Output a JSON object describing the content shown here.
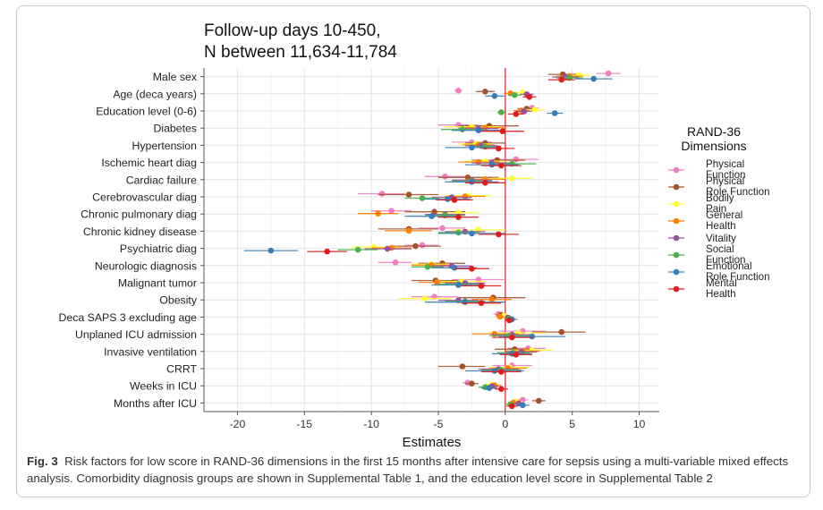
{
  "chart_data": {
    "type": "scatter",
    "title": "Follow-up days 10-450,\nN between 11,634-11,784",
    "xlabel": "Estimates",
    "ylabel": "",
    "xlim": [
      -22.5,
      11.5
    ],
    "xticks": [
      -20,
      -15,
      -10,
      -5,
      0,
      5,
      10
    ],
    "reference_line_x": 0,
    "grid": true,
    "legend_title": [
      "RAND-36",
      "Dimensions"
    ],
    "legend_position": "right",
    "categories": [
      "Male sex",
      "Age (deca years)",
      "Education level (0-6)",
      "Diabetes",
      "Hypertension",
      "Ischemic heart diag",
      "Cardiac failure",
      "Cerebrovascular diag",
      "Chronic pulmonary diag",
      "Chronic kidney disease",
      "Psychiatric diag",
      "Neurologic diagnosis",
      "Malignant tumor",
      "Obesity",
      "Deca SAPS 3 excluding age",
      "Unplaned ICU admission",
      "Invasive ventilation",
      "CRRT",
      "Weeks in ICU",
      "Months after ICU"
    ],
    "series": [
      {
        "name": "Physical Function",
        "label_lines": [
          "Physical",
          "Function"
        ],
        "color": "#f07ec0",
        "values": [
          7.7,
          -3.5,
          2.0,
          -3.5,
          -2.5,
          0.8,
          -4.5,
          -9.2,
          -8.5,
          -4.7,
          -6.2,
          -8.2,
          -2.0,
          -5.3,
          -0.5,
          1.3,
          1.7,
          0.5,
          -2.8,
          1.3
        ],
        "ci_low": [
          6.8,
          -3.8,
          1.5,
          -5.0,
          -4.0,
          -1.0,
          -6.0,
          -11.0,
          -10.0,
          -6.5,
          -7.5,
          -9.5,
          -4.0,
          -7.0,
          -0.9,
          -0.5,
          0.2,
          -1.0,
          -3.2,
          0.9
        ],
        "ci_high": [
          8.6,
          -3.2,
          2.5,
          -2.0,
          -1.0,
          2.5,
          -3.0,
          -7.5,
          -7.0,
          -3.0,
          -5.0,
          -7.0,
          0.0,
          -3.5,
          -0.1,
          3.0,
          3.0,
          2.0,
          -2.4,
          1.7
        ]
      },
      {
        "name": "Physical Role Function",
        "label_lines": [
          "Physical",
          "Role Function"
        ],
        "color": "#a4522c",
        "values": [
          4.3,
          -1.5,
          1.6,
          -1.2,
          -1.5,
          -0.6,
          -2.8,
          -7.2,
          -5.3,
          -7.2,
          -6.7,
          -4.7,
          -5.2,
          -0.9,
          -0.3,
          4.2,
          0.7,
          -3.2,
          -2.5,
          2.5
        ],
        "ci_low": [
          3.2,
          -2.2,
          0.9,
          -3.5,
          -3.0,
          -2.5,
          -5.0,
          -9.5,
          -7.5,
          -9.5,
          -8.5,
          -6.5,
          -7.0,
          -3.5,
          -0.7,
          2.0,
          -0.8,
          -5.0,
          -3.0,
          2.0
        ],
        "ci_high": [
          5.4,
          -0.8,
          2.3,
          1.0,
          0.0,
          1.5,
          -0.5,
          -5.0,
          -3.0,
          -5.0,
          -4.8,
          -3.0,
          -3.5,
          1.5,
          0.1,
          6.0,
          2.0,
          -1.5,
          -2.0,
          3.0
        ]
      },
      {
        "name": "Bodily Pain",
        "label_lines": [
          "Bodily",
          "Pain"
        ],
        "color": "#ffff33",
        "values": [
          5.5,
          1.3,
          2.2,
          -2.5,
          -2.2,
          -1.5,
          0.5,
          -2.8,
          -3.5,
          -2.0,
          -9.8,
          -5.5,
          -3.2,
          -6.0,
          -0.1,
          1.0,
          2.0,
          0.3,
          -1.0,
          0.8
        ],
        "ci_low": [
          4.5,
          0.8,
          1.5,
          -4.5,
          -3.5,
          -3.0,
          -1.0,
          -4.5,
          -5.0,
          -4.0,
          -11.5,
          -7.0,
          -5.0,
          -8.0,
          -0.5,
          -1.0,
          0.5,
          -1.2,
          -1.5,
          0.3
        ],
        "ci_high": [
          6.5,
          1.8,
          2.9,
          -0.5,
          -1.0,
          0.0,
          2.0,
          -1.0,
          -2.0,
          0.0,
          -8.0,
          -4.0,
          -1.5,
          -4.0,
          0.3,
          3.0,
          3.5,
          1.8,
          -0.5,
          1.3
        ]
      },
      {
        "name": "General Health",
        "label_lines": [
          "General",
          "Health"
        ],
        "color": "#ff7f00",
        "values": [
          4.8,
          0.4,
          1.2,
          -1.5,
          -2.0,
          -2.0,
          -1.5,
          -3.0,
          -9.5,
          -7.2,
          -8.5,
          -5.5,
          -5.1,
          -1.0,
          -0.4,
          -0.8,
          1.3,
          0.2,
          -0.8,
          0.6
        ],
        "ci_low": [
          3.8,
          -0.1,
          0.6,
          -3.0,
          -3.2,
          -3.5,
          -3.0,
          -4.5,
          -11.0,
          -9.0,
          -10.0,
          -7.0,
          -6.5,
          -2.5,
          -0.7,
          -2.5,
          0.0,
          -1.2,
          -1.3,
          0.2
        ],
        "ci_high": [
          5.8,
          0.9,
          1.8,
          0.0,
          -0.8,
          -0.5,
          0.0,
          -1.5,
          -8.0,
          -5.5,
          -7.0,
          -4.0,
          -3.7,
          0.5,
          -0.1,
          1.0,
          2.6,
          1.6,
          -0.3,
          1.0
        ]
      },
      {
        "name": "Vitality",
        "label_lines": [
          "Vitality"
        ],
        "color": "#984ea3",
        "values": [
          4.5,
          1.6,
          1.4,
          -2.0,
          -1.8,
          -1.0,
          -2.5,
          -4.0,
          -4.5,
          -3.0,
          -8.8,
          -4.0,
          -3.0,
          -3.5,
          0.2,
          0.5,
          1.2,
          -0.5,
          -1.0,
          1.0
        ],
        "ci_low": [
          3.5,
          1.1,
          0.8,
          -3.5,
          -3.0,
          -2.5,
          -4.0,
          -5.5,
          -6.0,
          -4.5,
          -10.5,
          -5.5,
          -4.5,
          -5.0,
          -0.1,
          -1.0,
          0.0,
          -2.0,
          -1.5,
          0.6
        ],
        "ci_high": [
          5.5,
          2.1,
          2.0,
          -0.5,
          -0.6,
          0.5,
          -1.0,
          -2.5,
          -3.0,
          -1.5,
          -7.0,
          -2.5,
          -1.5,
          -2.0,
          0.5,
          2.0,
          2.4,
          1.0,
          -0.5,
          1.4
        ]
      },
      {
        "name": "Social Function",
        "label_lines": [
          "Social",
          "Function"
        ],
        "color": "#4daf4a",
        "values": [
          4.8,
          0.7,
          -0.3,
          -3.2,
          -1.5,
          0.5,
          -2.5,
          -6.2,
          -4.5,
          -3.5,
          -11.0,
          -5.8,
          -3.5,
          -3.0,
          0.3,
          0.3,
          0.6,
          -0.3,
          -1.5,
          0.4
        ],
        "ci_low": [
          3.8,
          0.2,
          -0.6,
          -4.8,
          -2.7,
          -1.0,
          -4.0,
          -7.5,
          -6.0,
          -5.0,
          -12.5,
          -7.0,
          -5.0,
          -4.5,
          0.0,
          -1.2,
          -0.6,
          -1.8,
          -2.0,
          0.0
        ],
        "ci_high": [
          5.8,
          1.2,
          0.0,
          -1.6,
          -0.3,
          2.3,
          -1.0,
          -4.9,
          -3.0,
          -2.0,
          -9.5,
          -4.6,
          -2.0,
          -1.5,
          0.6,
          1.8,
          1.8,
          1.2,
          -1.0,
          0.8
        ]
      },
      {
        "name": "Emotional Role Function",
        "label_lines": [
          "Emotional",
          "Role Function"
        ],
        "color": "#377eb8",
        "values": [
          6.6,
          -0.8,
          3.7,
          -2.0,
          -2.5,
          -1.0,
          -2.5,
          -4.3,
          -5.5,
          -2.5,
          -17.5,
          -3.8,
          -3.5,
          -3.0,
          0.5,
          2.0,
          0.5,
          -0.8,
          -1.2,
          1.3
        ],
        "ci_low": [
          5.2,
          -1.5,
          3.1,
          -4.0,
          -4.5,
          -3.0,
          -4.5,
          -6.0,
          -7.5,
          -5.0,
          -19.5,
          -5.5,
          -5.5,
          -6.0,
          0.1,
          -0.5,
          -1.0,
          -3.0,
          -1.8,
          0.8
        ],
        "ci_high": [
          8.0,
          -0.1,
          4.3,
          0.0,
          -0.5,
          1.0,
          -0.5,
          -2.6,
          -3.5,
          0.0,
          -15.5,
          -2.1,
          -1.5,
          0.0,
          0.9,
          4.5,
          2.0,
          1.4,
          -0.6,
          1.8
        ]
      },
      {
        "name": "Mental Health",
        "label_lines": [
          "Mental",
          "Health"
        ],
        "color": "#e41a1c",
        "values": [
          4.2,
          1.8,
          0.8,
          -0.2,
          -0.5,
          -0.3,
          -1.5,
          -3.8,
          -3.5,
          -0.5,
          -13.3,
          -2.5,
          -1.8,
          -1.8,
          0.3,
          0.5,
          0.8,
          -0.3,
          -0.3,
          0.5
        ],
        "ci_low": [
          3.2,
          1.3,
          0.2,
          -1.8,
          -1.7,
          -1.8,
          -3.0,
          -5.2,
          -5.0,
          -2.0,
          -14.8,
          -3.8,
          -3.3,
          -3.3,
          0.0,
          -1.0,
          -0.4,
          -1.8,
          -0.8,
          0.1
        ],
        "ci_high": [
          5.2,
          2.3,
          1.4,
          1.4,
          0.7,
          1.2,
          0.0,
          -2.4,
          -2.0,
          1.0,
          -11.8,
          -1.2,
          -0.3,
          -0.3,
          0.6,
          2.0,
          2.0,
          1.2,
          0.2,
          0.9
        ]
      }
    ]
  },
  "caption": {
    "label": "Fig. 3",
    "text": "Risk factors for low score in RAND-36 dimensions in the first 15 months after intensive care for sepsis using a multi-variable mixed effects analysis. Comorbidity diagnosis groups are shown in Supplemental Table 1, and the education level score in Supplemental Table 2"
  }
}
